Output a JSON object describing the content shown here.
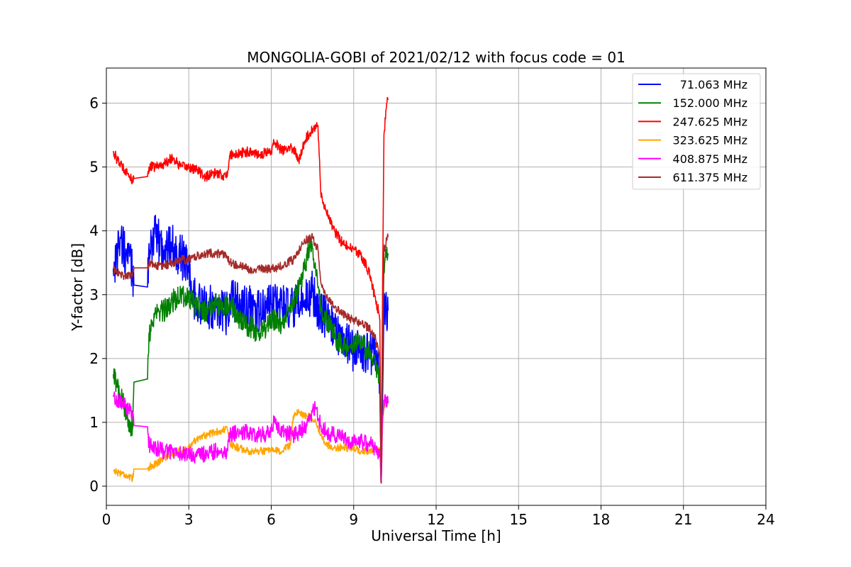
{
  "chart_data": {
    "type": "line",
    "title": "MONGOLIA-GOBI of 2021/02/12 with focus code = 01",
    "xlabel": "Universal Time [h]",
    "ylabel": "Y-factor [dB]",
    "xlim": [
      0,
      24
    ],
    "ylim": [
      -0.3,
      6.55
    ],
    "xticks": [
      0,
      3,
      6,
      9,
      12,
      15,
      18,
      21,
      24
    ],
    "yticks": [
      0,
      1,
      2,
      3,
      4,
      5,
      6
    ],
    "grid": true,
    "legend_position": "top-right",
    "series": [
      {
        "name": "71.063 MHz",
        "color": "#0000ff",
        "noise": 0.35,
        "x": [
          0.25,
          0.3,
          0.5,
          0.7,
          0.9,
          1.0,
          1.5,
          1.55,
          1.8,
          2.1,
          2.4,
          2.7,
          3.0,
          3.1,
          3.3,
          3.6,
          4.0,
          4.4,
          4.5,
          4.8,
          5.2,
          5.6,
          6.0,
          6.1,
          6.4,
          6.8,
          7.2,
          7.5,
          7.8,
          8.1,
          8.4,
          8.7,
          9.0,
          9.3,
          9.6,
          9.85,
          9.95,
          10.0,
          10.05,
          10.1,
          10.25
        ],
        "y": [
          3.4,
          3.5,
          3.9,
          3.6,
          3.5,
          3.15,
          3.12,
          3.8,
          3.9,
          3.7,
          3.8,
          3.6,
          3.5,
          3.0,
          2.9,
          2.8,
          2.8,
          2.7,
          3.0,
          2.85,
          2.8,
          2.7,
          2.85,
          2.95,
          2.8,
          2.75,
          2.9,
          3.05,
          2.7,
          2.6,
          2.4,
          2.3,
          2.1,
          2.15,
          2.1,
          2.0,
          1.5,
          0.05,
          1.3,
          2.8,
          2.75
        ]
      },
      {
        "name": "152.000 MHz",
        "color": "#008000",
        "noise": 0.18,
        "x": [
          0.25,
          0.4,
          0.6,
          0.8,
          0.95,
          1.0,
          1.5,
          1.55,
          1.8,
          2.1,
          2.4,
          2.7,
          3.0,
          3.3,
          3.6,
          4.0,
          4.4,
          4.5,
          4.8,
          5.2,
          5.6,
          6.0,
          6.4,
          6.8,
          7.2,
          7.4,
          7.6,
          7.8,
          8.1,
          8.4,
          8.7,
          9.0,
          9.3,
          9.6,
          9.8,
          9.95,
          10.0,
          10.05,
          10.1,
          10.25
        ],
        "y": [
          1.75,
          1.55,
          1.3,
          1.05,
          0.9,
          1.63,
          1.68,
          2.4,
          2.7,
          2.75,
          2.9,
          3.0,
          2.95,
          2.8,
          2.75,
          2.85,
          2.8,
          2.9,
          2.6,
          2.5,
          2.4,
          2.6,
          2.55,
          2.9,
          3.4,
          3.8,
          3.5,
          2.8,
          2.5,
          2.3,
          2.2,
          2.25,
          2.2,
          2.1,
          1.9,
          1.7,
          0.05,
          2.0,
          3.5,
          3.65
        ]
      },
      {
        "name": "247.625 MHz",
        "color": "#ff0000",
        "noise": 0.08,
        "x": [
          0.25,
          0.4,
          0.6,
          0.8,
          0.95,
          1.0,
          1.5,
          1.55,
          1.8,
          2.1,
          2.4,
          2.7,
          3.0,
          3.3,
          3.6,
          4.0,
          4.4,
          4.5,
          4.8,
          5.2,
          5.6,
          6.0,
          6.1,
          6.4,
          6.8,
          7.0,
          7.2,
          7.5,
          7.7,
          7.8,
          8.0,
          8.3,
          8.6,
          9.0,
          9.3,
          9.6,
          9.8,
          9.9,
          9.95,
          10.0,
          10.05,
          10.1,
          10.2,
          10.25
        ],
        "y": [
          5.25,
          5.1,
          5.0,
          4.9,
          4.75,
          4.82,
          4.85,
          5.0,
          5.0,
          5.05,
          5.15,
          5.0,
          5.0,
          4.95,
          4.85,
          4.9,
          4.85,
          5.2,
          5.2,
          5.25,
          5.2,
          5.25,
          5.4,
          5.25,
          5.3,
          5.1,
          5.4,
          5.6,
          5.65,
          4.6,
          4.3,
          4.0,
          3.8,
          3.7,
          3.6,
          3.3,
          2.9,
          2.75,
          2.6,
          0.05,
          3.0,
          5.5,
          6.0,
          6.05
        ]
      },
      {
        "name": "323.625 MHz",
        "color": "#ffa500",
        "noise": 0.06,
        "x": [
          0.25,
          0.4,
          0.6,
          0.8,
          0.95,
          1.0,
          1.5,
          1.55,
          1.8,
          2.1,
          2.4,
          2.7,
          3.0,
          3.3,
          3.6,
          4.0,
          4.4,
          4.5,
          4.8,
          5.2,
          5.6,
          6.0,
          6.4,
          6.7,
          6.8,
          7.0,
          7.3,
          7.6,
          7.8,
          8.0,
          8.3,
          8.6,
          9.0,
          9.3,
          9.6,
          9.8,
          9.95,
          10.0,
          10.05,
          10.1,
          10.25
        ],
        "y": [
          0.25,
          0.22,
          0.2,
          0.15,
          0.1,
          0.27,
          0.27,
          0.3,
          0.35,
          0.45,
          0.5,
          0.55,
          0.6,
          0.75,
          0.8,
          0.85,
          0.9,
          0.65,
          0.6,
          0.55,
          0.55,
          0.55,
          0.55,
          0.65,
          1.1,
          1.15,
          1.1,
          1.05,
          0.8,
          0.65,
          0.6,
          0.6,
          0.6,
          0.55,
          0.55,
          0.6,
          0.55,
          0.05,
          0.9,
          1.25,
          1.3
        ]
      },
      {
        "name": "408.875 MHz",
        "color": "#ff00ff",
        "noise": 0.13,
        "x": [
          0.25,
          0.4,
          0.6,
          0.8,
          0.95,
          1.0,
          1.5,
          1.55,
          1.8,
          2.1,
          2.4,
          2.7,
          3.0,
          3.3,
          3.6,
          4.0,
          4.4,
          4.5,
          4.8,
          5.2,
          5.6,
          6.0,
          6.1,
          6.4,
          6.8,
          7.0,
          7.3,
          7.6,
          7.8,
          8.0,
          8.3,
          8.6,
          9.0,
          9.3,
          9.6,
          9.8,
          9.95,
          10.0,
          10.05,
          10.1,
          10.25
        ],
        "y": [
          1.4,
          1.35,
          1.3,
          1.2,
          1.1,
          0.95,
          0.93,
          0.65,
          0.6,
          0.55,
          0.55,
          0.5,
          0.5,
          0.48,
          0.5,
          0.55,
          0.55,
          0.8,
          0.85,
          0.85,
          0.8,
          0.85,
          1.0,
          0.85,
          0.8,
          0.85,
          0.95,
          1.25,
          0.95,
          0.85,
          0.8,
          0.75,
          0.7,
          0.7,
          0.65,
          0.6,
          0.5,
          0.05,
          1.1,
          1.35,
          1.3
        ]
      },
      {
        "name": "611.375 MHz",
        "color": "#a52a2a",
        "noise": 0.07,
        "x": [
          0.25,
          0.4,
          0.6,
          0.8,
          0.95,
          1.0,
          1.5,
          1.55,
          1.8,
          2.1,
          2.4,
          2.7,
          3.0,
          3.3,
          3.6,
          4.0,
          4.4,
          4.5,
          4.8,
          5.2,
          5.6,
          6.0,
          6.4,
          6.8,
          7.0,
          7.2,
          7.5,
          7.7,
          7.8,
          8.0,
          8.3,
          8.6,
          9.0,
          9.3,
          9.6,
          9.8,
          9.95,
          10.0,
          10.05,
          10.1,
          10.2,
          10.25
        ],
        "y": [
          3.4,
          3.35,
          3.3,
          3.3,
          3.3,
          3.42,
          3.42,
          3.5,
          3.45,
          3.45,
          3.5,
          3.55,
          3.55,
          3.6,
          3.65,
          3.65,
          3.6,
          3.5,
          3.45,
          3.4,
          3.4,
          3.4,
          3.45,
          3.55,
          3.7,
          3.85,
          3.9,
          3.7,
          3.2,
          2.95,
          2.8,
          2.7,
          2.6,
          2.55,
          2.45,
          2.3,
          2.0,
          0.05,
          2.2,
          3.7,
          3.85,
          3.9
        ]
      }
    ]
  }
}
